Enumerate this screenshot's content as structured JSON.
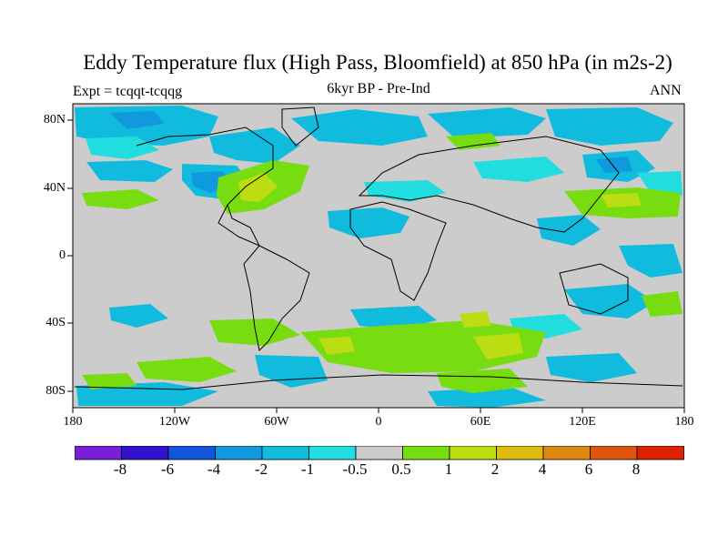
{
  "title": "Eddy Temperature flux (High Pass, Bloomfield) at 850 hPa (in m2s-2)",
  "experiment": "Expt = tcqqt-tcqqg",
  "subtitle": "6kyr BP - Pre-Ind",
  "season": "ANN",
  "lat_labels": [
    "80N",
    "40N",
    "0",
    "40S",
    "80S"
  ],
  "lon_labels": [
    "180",
    "120W",
    "60W",
    "0",
    "60E",
    "120E",
    "180"
  ],
  "colorbar": {
    "labels": [
      "-8",
      "-6",
      "-4",
      "-2",
      "-1",
      "-0.5",
      "0.5",
      "1",
      "2",
      "4",
      "6",
      "8"
    ],
    "colors": [
      "#7a1fd8",
      "#3311cc",
      "#1155dd",
      "#1199dd",
      "#11bbdd",
      "#22dddd",
      "#cccccc",
      "#77dd11",
      "#bbdd11",
      "#ddbb11",
      "#dd8811",
      "#dd5511",
      "#dd2200"
    ]
  },
  "colors": {
    "background": "#cccccc",
    "neg_weak": "#22dddd",
    "neg_mid": "#11bbdd",
    "neg_strong": "#1199dd",
    "pos_weak": "#77dd11",
    "pos_mid": "#bbdd11"
  }
}
